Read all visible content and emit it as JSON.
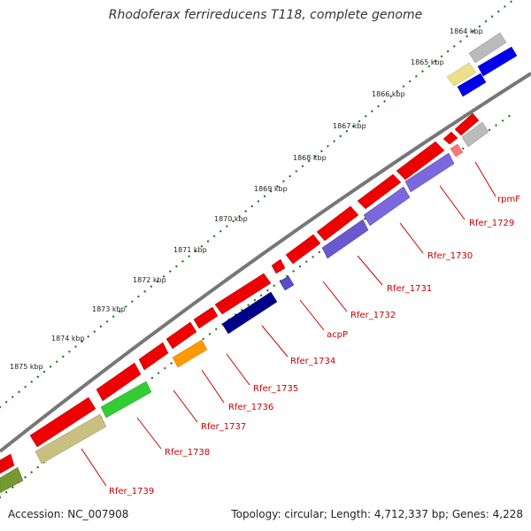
{
  "title": "Rhodoferax ferrireducens T118, complete genome",
  "accession_text": "Accession: NC_007908",
  "summary_text": "Topology: circular; Length: 4,712,337 bp; Genes: 4,228",
  "colors": {
    "backbone": "#888888",
    "tick_major": "#117711",
    "tick_minor": "#33aa33",
    "label_line": "#cc0000",
    "label_text": "#cc0000"
  },
  "kbp_labels": [
    "1864 kbp",
    "1865 kbp",
    "1866 kbp",
    "1867 kbp",
    "1868 kbp",
    "1869 kbp",
    "1870 kbp",
    "1871 kbp",
    "1872 kbp",
    "1873 kbp",
    "1874 kbp",
    "1875 kbp"
  ],
  "gene_labels": [
    "rpmF",
    "Rfer_1729",
    "Rfer_1730",
    "Rfer_1731",
    "Rfer_1732",
    "acpP",
    "Rfer_1734",
    "Rfer_1735",
    "Rfer_1736",
    "Rfer_1737",
    "Rfer_1738",
    "Rfer_1739"
  ],
  "feature_colors": [
    "red",
    "blue",
    "gray",
    "khaki",
    "orange",
    "green",
    "olive",
    "pink",
    "slate-blue",
    "navy"
  ]
}
